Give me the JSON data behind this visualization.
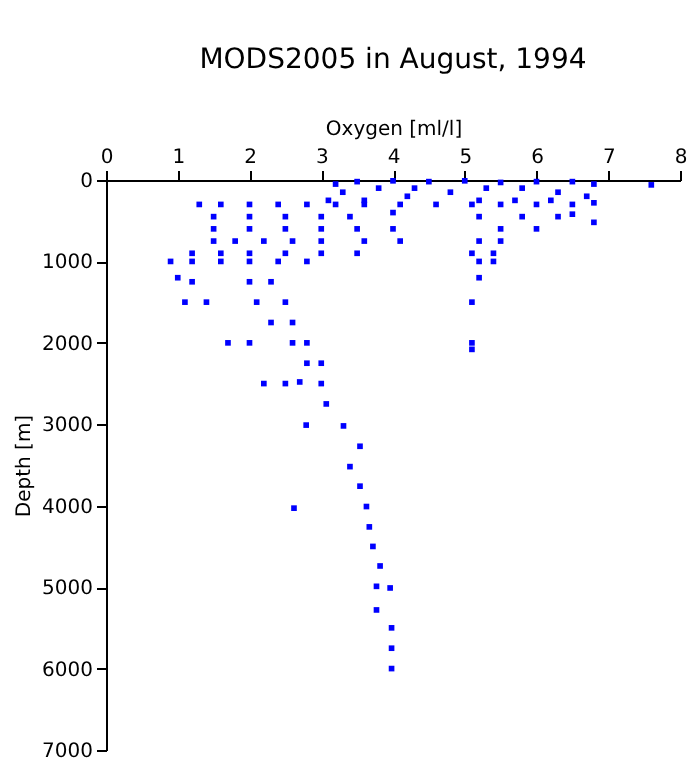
{
  "chart_data": {
    "type": "scatter",
    "title": "MODS2005 in August, 1994",
    "xlabel": "Oxygen [ml/l]",
    "ylabel": "Depth [m]",
    "xlim": [
      0,
      8
    ],
    "xticks": [
      0,
      1,
      2,
      3,
      4,
      5,
      6,
      7,
      8
    ],
    "ylim": [
      7000,
      0
    ],
    "yticks": [
      0,
      1000,
      2000,
      3000,
      4000,
      5000,
      6000,
      7000
    ],
    "grid": false,
    "marker": "square",
    "series": [
      {
        "color": "#0000ff",
        "x": [
          3.2,
          3.5,
          4.0,
          4.5,
          5.0,
          5.5,
          6.0,
          6.5,
          6.8,
          7.6,
          3.3,
          3.8,
          4.3,
          4.8,
          5.3,
          5.8,
          6.3,
          6.7,
          3.1,
          3.6,
          4.2,
          5.2,
          5.7,
          6.2,
          6.5,
          6.8,
          1.3,
          1.6,
          2.0,
          2.4,
          2.8,
          3.2,
          3.6,
          4.1,
          4.6,
          5.1,
          5.5,
          6.0,
          1.5,
          2.0,
          2.5,
          3.0,
          3.4,
          4.0,
          5.2,
          5.8,
          6.3,
          6.5,
          6.8,
          1.5,
          2.0,
          2.5,
          3.0,
          3.5,
          4.0,
          5.5,
          6.0,
          1.5,
          1.8,
          2.2,
          2.6,
          3.0,
          3.6,
          4.1,
          5.2,
          5.5,
          1.2,
          1.6,
          2.0,
          2.5,
          3.0,
          3.5,
          5.1,
          5.4,
          0.9,
          1.2,
          1.6,
          2.0,
          2.4,
          2.8,
          5.2,
          5.4,
          1.0,
          1.2,
          2.0,
          2.3,
          5.2,
          1.1,
          1.4,
          2.1,
          2.5,
          5.1,
          2.3,
          2.6,
          1.7,
          2.0,
          2.6,
          2.8,
          5.1,
          5.1,
          2.8,
          3.0,
          2.2,
          2.5,
          2.7,
          3.0,
          3.07,
          3.31,
          2.79,
          3.54,
          3.4,
          3.54,
          2.62,
          3.63,
          3.67,
          3.72,
          3.82,
          3.77,
          3.96,
          3.77,
          3.98,
          3.98,
          3.98
        ],
        "values": [
          50,
          20,
          10,
          20,
          10,
          30,
          20,
          20,
          50,
          60,
          150,
          100,
          100,
          150,
          100,
          100,
          150,
          200,
          250,
          250,
          200,
          250,
          250,
          250,
          300,
          280,
          300,
          300,
          300,
          300,
          300,
          300,
          300,
          300,
          300,
          300,
          300,
          300,
          450,
          450,
          450,
          450,
          450,
          400,
          450,
          450,
          450,
          420,
          520,
          600,
          600,
          600,
          600,
          600,
          600,
          600,
          600,
          750,
          750,
          750,
          750,
          750,
          750,
          750,
          750,
          750,
          900,
          900,
          900,
          900,
          900,
          900,
          900,
          900,
          1000,
          1000,
          1000,
          1000,
          1000,
          1000,
          1000,
          1000,
          1200,
          1250,
          1250,
          1250,
          1200,
          1500,
          1500,
          1500,
          1500,
          1500,
          1750,
          1750,
          2000,
          2000,
          2000,
          2000,
          2000,
          2080,
          2250,
          2250,
          2500,
          2500,
          2480,
          2500,
          2750,
          3020,
          3010,
          3270,
          3520,
          3760,
          4030,
          4010,
          4260,
          4500,
          4740,
          4990,
          5010,
          5280,
          5500,
          5750,
          6000
        ]
      }
    ]
  }
}
